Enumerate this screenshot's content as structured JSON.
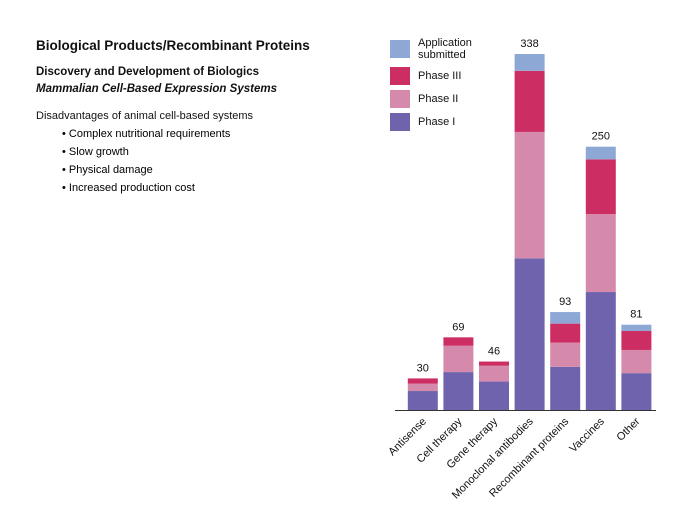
{
  "header": {
    "title": "Biological Products/Recombinant Proteins",
    "subtitle": "Discovery and Development of Biologics",
    "subtitle2": "Mammalian Cell-Based Expression Systems"
  },
  "text": {
    "heading": "Disadvantages of animal cell-based systems",
    "bullets": [
      "Complex nutritional requirements",
      "Slow growth",
      "Physical damage",
      "Increased production cost"
    ]
  },
  "chart_data": {
    "type": "stacked_bar",
    "categories": [
      "Antisense",
      "Cell therapy",
      "Gene therapy",
      "Monoclonal antibodies",
      "Recombinant proteins",
      "Vaccines",
      "Other"
    ],
    "totals": [
      30,
      69,
      46,
      338,
      93,
      250,
      81
    ],
    "series": [
      {
        "name": "Application submitted",
        "color": "#8ea8d6",
        "values": [
          0,
          0,
          0,
          16,
          11,
          12,
          6
        ]
      },
      {
        "name": "Phase III",
        "color": "#cc2e63",
        "values": [
          5,
          8,
          4,
          58,
          18,
          52,
          18
        ]
      },
      {
        "name": "Phase II",
        "color": "#d68aab",
        "values": [
          7,
          25,
          15,
          120,
          23,
          74,
          22
        ]
      },
      {
        "name": "Phase I",
        "color": "#6f63ad",
        "values": [
          18,
          36,
          27,
          144,
          41,
          112,
          35
        ]
      }
    ]
  }
}
